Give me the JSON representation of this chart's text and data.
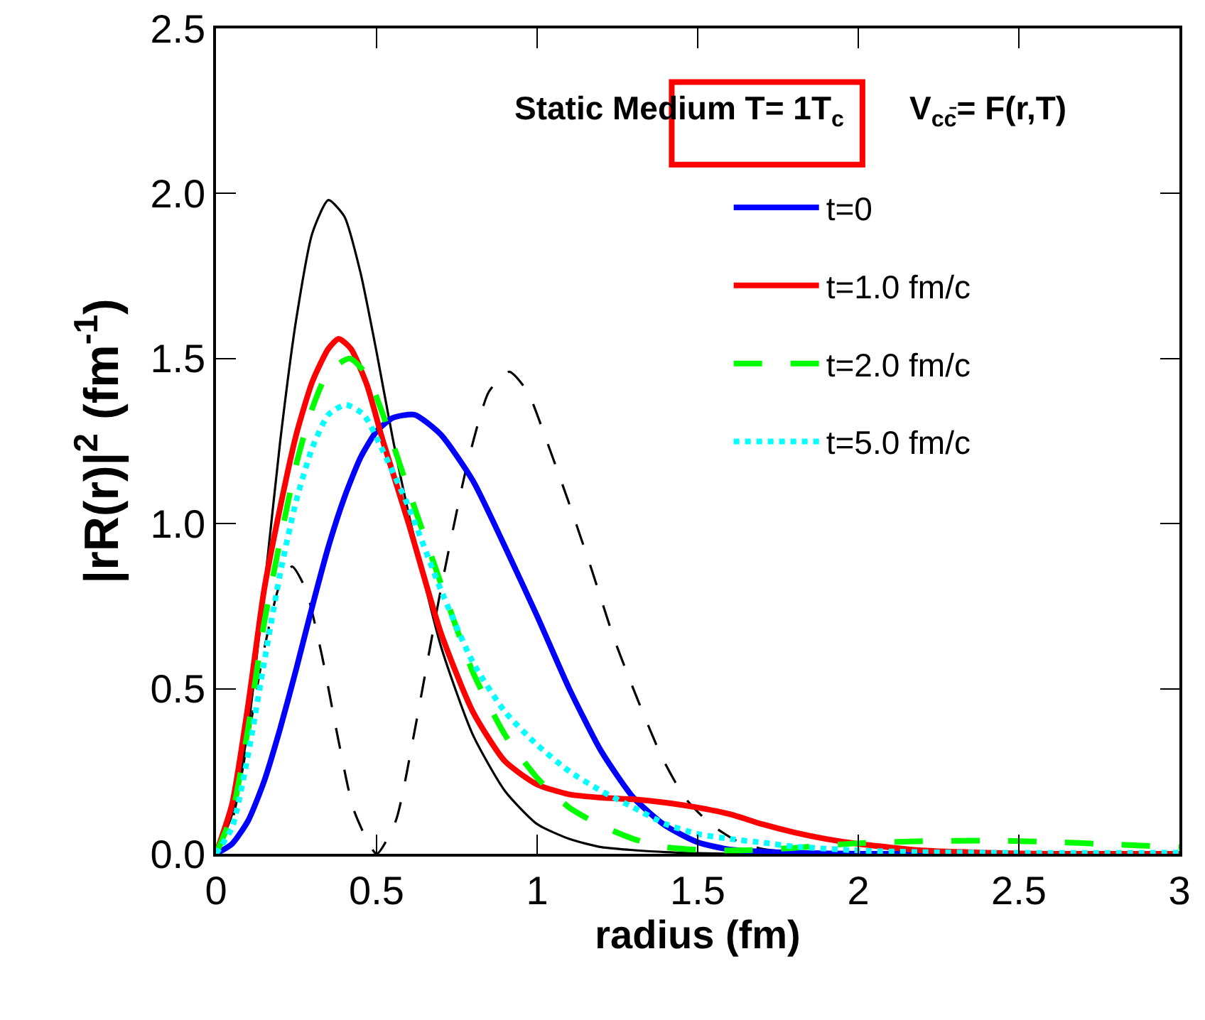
{
  "chart_data": {
    "type": "line",
    "xlabel": "radius (fm)",
    "ylabel": "|rR(r)|$^{2}$ (fm$^{-1}$)",
    "annotations": [
      "Static Medium T= 1T$_{c}$",
      "V$_{cc̄}$= F(r,T)"
    ],
    "xlim": [
      0,
      3
    ],
    "xticks": [
      0,
      0.5,
      1,
      1.5,
      2,
      2.5,
      3
    ],
    "ylim": [
      0,
      2.5
    ],
    "yticks": [
      {
        "value": 0,
        "label": "0.0"
      },
      0.5,
      {
        "value": 1,
        "label": "1.0"
      },
      1.5,
      {
        "value": 2,
        "label": "2.0"
      },
      2.5
    ],
    "legend": "top right",
    "marker": "none",
    "series": [
      {
        "color": "#000000",
        "line_style": "solid",
        "x": [
          0,
          0.05,
          0.1,
          0.15,
          0.2,
          0.25,
          0.3,
          0.35,
          0.4,
          0.45,
          0.5,
          0.55,
          0.6,
          0.7,
          0.8,
          0.9,
          1.0,
          1.1,
          1.2,
          1.4,
          1.6,
          1.8,
          2.0,
          3.0
        ],
        "values": [
          0,
          0.12,
          0.38,
          0.8,
          1.25,
          1.62,
          1.88,
          1.98,
          1.93,
          1.76,
          1.52,
          1.26,
          1.03,
          0.63,
          0.36,
          0.19,
          0.09,
          0.045,
          0.02,
          0.005,
          0,
          0,
          0,
          0
        ]
      },
      {
        "color": "#000000",
        "line_style": "dashed",
        "x": [
          0,
          0.05,
          0.1,
          0.15,
          0.2,
          0.237,
          0.28,
          0.33,
          0.38,
          0.43,
          0.5,
          0.56,
          0.62,
          0.7,
          0.78,
          0.85,
          0.913,
          0.97,
          1.03,
          1.1,
          1.17,
          1.24,
          1.32,
          1.39,
          1.46,
          1.54,
          1.62,
          1.7,
          1.8,
          1.9
        ],
        "values": [
          0,
          0.1,
          0.35,
          0.62,
          0.82,
          0.87,
          0.8,
          0.6,
          0.35,
          0.13,
          0,
          0.1,
          0.38,
          0.8,
          1.17,
          1.4,
          1.46,
          1.4,
          1.25,
          1.06,
          0.86,
          0.65,
          0.45,
          0.29,
          0.17,
          0.09,
          0.04,
          0.015,
          0.005,
          0
        ]
      },
      {
        "name": "t=0",
        "color": "#0000ff",
        "line_style": "solid",
        "x": [
          0,
          0.05,
          0.1,
          0.15,
          0.2,
          0.25,
          0.3,
          0.35,
          0.4,
          0.45,
          0.5,
          0.55,
          0.618,
          0.7,
          0.8,
          0.9,
          1.0,
          1.1,
          1.2,
          1.3,
          1.4,
          1.5,
          1.6,
          1.8,
          2.0,
          3.0
        ],
        "values": [
          0,
          0.03,
          0.1,
          0.22,
          0.38,
          0.56,
          0.75,
          0.93,
          1.08,
          1.2,
          1.28,
          1.32,
          1.33,
          1.27,
          1.13,
          0.93,
          0.72,
          0.5,
          0.31,
          0.17,
          0.085,
          0.035,
          0.013,
          0.003,
          0,
          0
        ]
      },
      {
        "name": "t=1.0 fm/c",
        "color": "#ff0000",
        "line_style": "solid",
        "x": [
          0,
          0.05,
          0.1,
          0.15,
          0.2,
          0.25,
          0.3,
          0.35,
          0.382,
          0.42,
          0.47,
          0.52,
          0.6,
          0.7,
          0.8,
          0.9,
          1.0,
          1.1,
          1.2,
          1.3,
          1.4,
          1.5,
          1.6,
          1.7,
          1.8,
          1.9,
          2.0,
          2.2,
          2.4,
          2.6,
          3.0
        ],
        "values": [
          0,
          0.15,
          0.45,
          0.8,
          1.05,
          1.27,
          1.43,
          1.53,
          1.56,
          1.53,
          1.42,
          1.25,
          1.0,
          0.67,
          0.43,
          0.28,
          0.21,
          0.18,
          0.17,
          0.165,
          0.155,
          0.14,
          0.12,
          0.09,
          0.065,
          0.045,
          0.03,
          0.01,
          0.003,
          0,
          0
        ]
      },
      {
        "name": "t=2.0 fm/c",
        "color": "#00ff00",
        "line_style": "dashed",
        "x": [
          0,
          0.05,
          0.1,
          0.15,
          0.2,
          0.25,
          0.3,
          0.35,
          0.416,
          0.47,
          0.52,
          0.6,
          0.7,
          0.8,
          0.9,
          1.0,
          1.1,
          1.2,
          1.3,
          1.4,
          1.5,
          1.6,
          1.7,
          1.8,
          2.0,
          2.2,
          2.4,
          2.6,
          2.8,
          3.0
        ],
        "values": [
          0,
          0.12,
          0.38,
          0.7,
          0.95,
          1.18,
          1.35,
          1.46,
          1.5,
          1.45,
          1.33,
          1.1,
          0.82,
          0.55,
          0.36,
          0.23,
          0.14,
          0.085,
          0.045,
          0.02,
          0.012,
          0.01,
          0.012,
          0.018,
          0.032,
          0.038,
          0.04,
          0.036,
          0.028,
          0.02
        ]
      },
      {
        "name": "t=5.0 fm/c",
        "color": "#00ffff",
        "line_style": "dotted",
        "x": [
          0,
          0.05,
          0.1,
          0.15,
          0.2,
          0.25,
          0.3,
          0.35,
          0.404,
          0.46,
          0.52,
          0.6,
          0.7,
          0.8,
          0.9,
          1.0,
          1.1,
          1.2,
          1.3,
          1.4,
          1.5,
          1.6,
          1.7,
          1.8,
          2.0,
          2.2,
          2.5,
          3.0
        ],
        "values": [
          0,
          0.08,
          0.3,
          0.58,
          0.85,
          1.07,
          1.23,
          1.33,
          1.36,
          1.33,
          1.22,
          1.05,
          0.8,
          0.58,
          0.43,
          0.33,
          0.25,
          0.19,
          0.14,
          0.09,
          0.06,
          0.045,
          0.034,
          0.022,
          0.01,
          0.005,
          0.003,
          0.003
        ]
      }
    ]
  }
}
